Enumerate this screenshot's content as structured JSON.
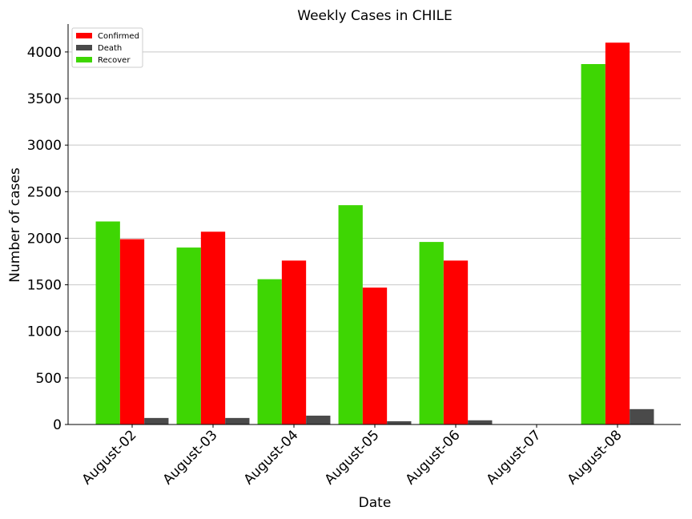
{
  "chart_data": {
    "type": "bar",
    "title": "Weekly Cases in CHILE",
    "xlabel": "Date",
    "ylabel": "Number of cases",
    "categories": [
      "August-02",
      "August-03",
      "August-04",
      "August-05",
      "August-06",
      "August-07",
      "August-08"
    ],
    "series": [
      {
        "name": "Recover",
        "color": "#3ed603",
        "values": [
          2180,
          1900,
          1560,
          2355,
          1960,
          0,
          3870
        ]
      },
      {
        "name": "Confirmed",
        "color": "#ff0000",
        "values": [
          1990,
          2070,
          1760,
          1470,
          1760,
          0,
          4100
        ]
      },
      {
        "name": "Death",
        "color": "#4a4a4a",
        "values": [
          70,
          70,
          95,
          35,
          45,
          0,
          165
        ]
      }
    ],
    "legend_order": [
      "Confirmed",
      "Death",
      "Recover"
    ],
    "legend_position": "top-left",
    "ylim": [
      0,
      4300
    ],
    "yticks": [
      0,
      500,
      1000,
      1500,
      2000,
      2500,
      3000,
      3500,
      4000
    ],
    "grid": "horizontal"
  }
}
